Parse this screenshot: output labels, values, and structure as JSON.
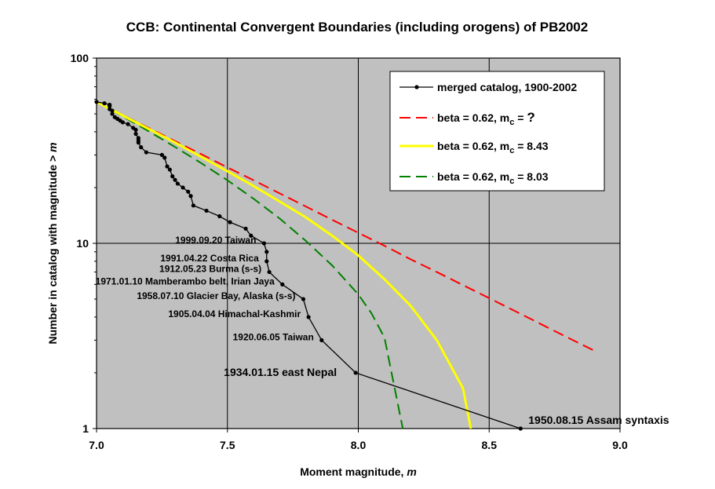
{
  "chart_data": {
    "type": "line",
    "title": "CCB: Continental Convergent Boundaries (including orogens) of PB2002",
    "xlabel": "Moment magnitude, m",
    "ylabel": "Number in catalog with magnitude > m",
    "xlim": [
      7.0,
      9.0
    ],
    "ylim": [
      1,
      100
    ],
    "y_scale": "log",
    "x_ticks": [
      "7.0",
      "7.5",
      "8.0",
      "8.5",
      "9.0"
    ],
    "y_ticks": [
      "1",
      "10",
      "100"
    ],
    "grid": true,
    "plot_background": "#c0c0c0",
    "legend_position": "top-right",
    "series": [
      {
        "name": "merged catalog, 1900-2002",
        "style": "line-markers",
        "color": "#000000",
        "x": [
          7.0,
          7.03,
          7.05,
          7.05,
          7.05,
          7.06,
          7.06,
          7.07,
          7.08,
          7.09,
          7.1,
          7.12,
          7.14,
          7.15,
          7.15,
          7.16,
          7.16,
          7.16,
          7.17,
          7.19,
          7.25,
          7.26,
          7.27,
          7.28,
          7.29,
          7.3,
          7.31,
          7.33,
          7.35,
          7.36,
          7.37,
          7.42,
          7.47,
          7.51,
          7.57,
          7.59,
          7.64,
          7.65,
          7.65,
          7.66,
          7.71,
          7.79,
          7.81,
          7.86,
          7.99,
          8.62
        ],
        "y": [
          58,
          57,
          56,
          55,
          53,
          52,
          50,
          48,
          47,
          46,
          45,
          44,
          42,
          41,
          39,
          37,
          36,
          35,
          33,
          31,
          30,
          29,
          26,
          25,
          23,
          22,
          21,
          20,
          19,
          18,
          16,
          15,
          14,
          13,
          12,
          11,
          10,
          9,
          8,
          7,
          6,
          5,
          4,
          3,
          2,
          1
        ]
      },
      {
        "name": "beta = 0.62, mc = ?",
        "style": "dashed",
        "color": "#ff0000",
        "x": [
          7.0,
          7.1,
          7.2,
          7.3,
          7.4,
          7.5,
          7.6,
          7.7,
          7.8,
          7.9,
          8.0,
          8.1,
          8.2,
          8.3,
          8.4,
          8.5,
          8.6,
          8.7,
          8.8,
          8.9
        ],
        "y": [
          58,
          49.3,
          41.9,
          35.6,
          30.3,
          25.7,
          21.9,
          18.6,
          15.8,
          13.4,
          11.4,
          9.7,
          8.2,
          7.0,
          5.95,
          5.06,
          4.3,
          3.65,
          3.1,
          2.64
        ]
      },
      {
        "name": "beta = 0.62, mc = 8.43",
        "style": "solid",
        "color": "#ffff00",
        "x": [
          7.0,
          7.1,
          7.2,
          7.3,
          7.4,
          7.5,
          7.6,
          7.7,
          7.8,
          7.9,
          8.0,
          8.1,
          8.2,
          8.3,
          8.4,
          8.43
        ],
        "y": [
          58,
          49.0,
          41.4,
          35.0,
          29.3,
          24.5,
          20.4,
          16.8,
          13.8,
          11.0,
          8.6,
          6.4,
          4.6,
          3.0,
          1.65,
          1.0
        ]
      },
      {
        "name": "beta = 0.62, mc = 8.03",
        "style": "dashed",
        "color": "#008000",
        "x": [
          7.0,
          7.1,
          7.2,
          7.3,
          7.4,
          7.5,
          7.6,
          7.7,
          7.8,
          7.9,
          8.0,
          8.05,
          8.1,
          8.17
        ],
        "y": [
          58,
          48.5,
          40.2,
          33.1,
          27.1,
          21.9,
          17.4,
          13.6,
          10.3,
          7.6,
          5.3,
          4.2,
          3.1,
          1.0
        ]
      }
    ],
    "legend": [
      {
        "label": "merged catalog, 1900-2002",
        "sub": ""
      },
      {
        "label": "beta = 0.62, m",
        "sub": "c",
        "suffix": " = ",
        "extra": "?"
      },
      {
        "label": "beta = 0.62, m",
        "sub": "c",
        "suffix": " = 8.43",
        "extra": ""
      },
      {
        "label": "beta = 0.62, m",
        "sub": "c",
        "suffix": " = 8.03",
        "extra": ""
      }
    ],
    "annotations": [
      {
        "text": "1999.09.20 Taiwan",
        "x": 7.64,
        "y": 10,
        "size": "small"
      },
      {
        "text": "1991.04.22 Costa Rica",
        "x": 7.65,
        "y": 8,
        "size": "small"
      },
      {
        "text": "1912.05.23 Burma (s-s)",
        "x": 7.66,
        "y": 7,
        "size": "small"
      },
      {
        "text": "1971.01.10 Mamberambo belt, Irian Jaya",
        "x": 7.71,
        "y": 6,
        "size": "small"
      },
      {
        "text": "1958.07.10 Glacier Bay, Alaska (s-s)",
        "x": 7.79,
        "y": 5,
        "size": "small"
      },
      {
        "text": "1905.04.04 Himachal-Kashmir",
        "x": 7.81,
        "y": 4,
        "size": "small"
      },
      {
        "text": "1920.06.05 Taiwan",
        "x": 7.86,
        "y": 3,
        "size": "small"
      },
      {
        "text": "1934.01.15 east Nepal",
        "x": 7.99,
        "y": 2,
        "size": "big"
      },
      {
        "text": "1950.08.15 Assam syntaxis",
        "x": 8.62,
        "y": 1,
        "size": "big"
      }
    ]
  }
}
